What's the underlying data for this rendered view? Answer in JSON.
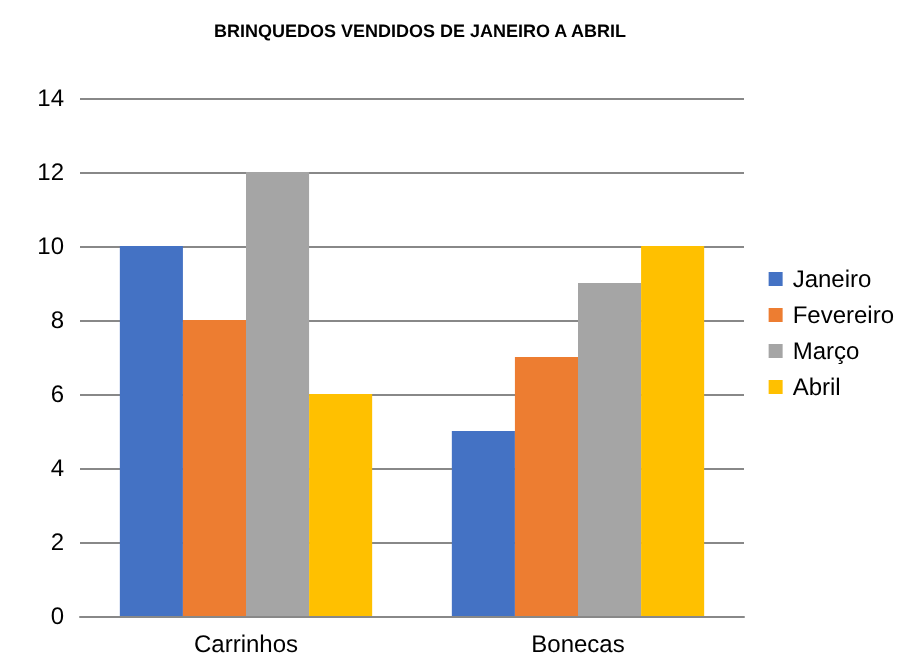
{
  "chart_data": {
    "type": "bar",
    "title": "BRINQUEDOS VENDIDOS DE JANEIRO A ABRIL",
    "categories": [
      "Carrinhos",
      "Bonecas"
    ],
    "series": [
      {
        "name": "Janeiro",
        "color": "#4472c4",
        "values": [
          10,
          5
        ]
      },
      {
        "name": "Fevereiro",
        "color": "#ed7d31",
        "values": [
          8,
          7
        ]
      },
      {
        "name": "Março",
        "color": "#a5a5a5",
        "values": [
          12,
          9
        ]
      },
      {
        "name": "Abril",
        "color": "#ffc000",
        "values": [
          6,
          10
        ]
      }
    ],
    "ylim": [
      0,
      14
    ],
    "yticks": [
      0,
      2,
      4,
      6,
      8,
      10,
      12,
      14
    ],
    "grid": "y",
    "legend": "right"
  }
}
